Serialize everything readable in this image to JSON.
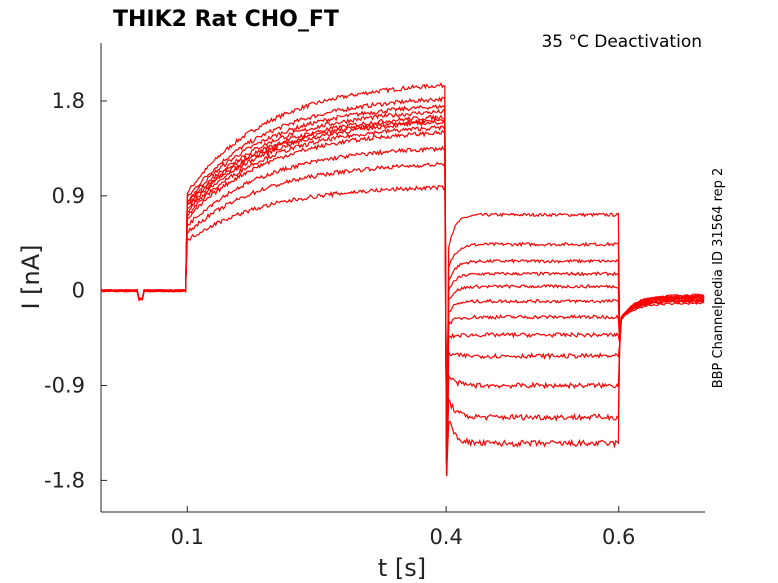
{
  "chart_data": {
    "type": "line",
    "title": "THIK2  Rat  CHO_FT",
    "annotation": "35 °C  Deactivation",
    "side_note": "BBP Channelpedia ID 31564 rep 2",
    "xlabel": "t [s]",
    "ylabel": "I [nA]",
    "xlim": [
      0.0,
      0.7
    ],
    "ylim": [
      -2.1,
      2.35
    ],
    "x_ticks": [
      0.1,
      0.4,
      0.6
    ],
    "x_tick_labels": [
      "0.1",
      "0.4",
      "0.6"
    ],
    "y_ticks": [
      1.8,
      0.9,
      0,
      -0.9,
      -1.8
    ],
    "y_tick_labels": [
      "1.8",
      "0.9",
      "0",
      "-0.9",
      "-1.8"
    ],
    "grid": false,
    "line_color": "#ff0000",
    "protocol": {
      "baseline_end": 0.1,
      "step_end": 0.4,
      "deact_end": 0.6
    },
    "series": [
      {
        "activation_start": 0.93,
        "activation_end": 1.95,
        "deactivation_level": 0.72,
        "tail_level": -0.05
      },
      {
        "activation_start": 0.88,
        "activation_end": 1.82,
        "deactivation_level": 0.44,
        "tail_level": -0.04
      },
      {
        "activation_start": 0.85,
        "activation_end": 1.75,
        "deactivation_level": 0.28,
        "tail_level": -0.06
      },
      {
        "activation_start": 0.82,
        "activation_end": 1.7,
        "deactivation_level": 0.16,
        "tail_level": -0.05
      },
      {
        "activation_start": 0.8,
        "activation_end": 1.65,
        "deactivation_level": 0.04,
        "tail_level": -0.07
      },
      {
        "activation_start": 0.78,
        "activation_end": 1.62,
        "deactivation_level": -0.1,
        "tail_level": -0.06
      },
      {
        "activation_start": 0.75,
        "activation_end": 1.6,
        "deactivation_level": -0.25,
        "tail_level": -0.08
      },
      {
        "activation_start": 0.72,
        "activation_end": 1.55,
        "deactivation_level": -0.42,
        "tail_level": -0.07
      },
      {
        "activation_start": 0.68,
        "activation_end": 1.5,
        "deactivation_level": -0.62,
        "tail_level": -0.09
      },
      {
        "activation_start": 0.62,
        "activation_end": 1.35,
        "deactivation_level": -0.9,
        "tail_level": -0.1
      },
      {
        "activation_start": 0.55,
        "activation_end": 1.2,
        "deactivation_level": -1.2,
        "tail_level": -0.1
      },
      {
        "activation_start": 0.48,
        "activation_end": 0.98,
        "deactivation_level": -1.45,
        "tail_level": -0.12
      }
    ]
  }
}
